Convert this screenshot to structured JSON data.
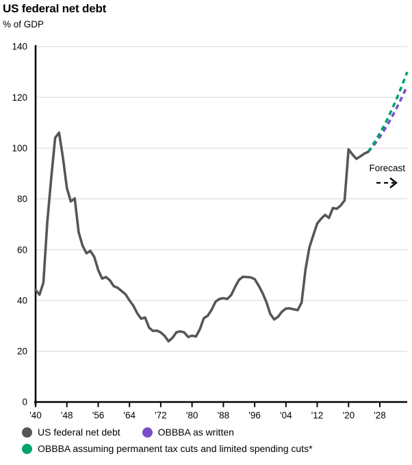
{
  "header": {
    "title": "US federal net debt",
    "subtitle": "% of GDP"
  },
  "chart_data": {
    "type": "line",
    "title": "US federal net debt",
    "ylabel": "% of GDP",
    "xlabel": "",
    "ylim": [
      0,
      140
    ],
    "yticks": [
      0,
      20,
      40,
      60,
      80,
      100,
      120,
      140
    ],
    "xlim": [
      1940,
      2035
    ],
    "xticks": [
      {
        "year": 1940,
        "label": "'40"
      },
      {
        "year": 1948,
        "label": "'48"
      },
      {
        "year": 1956,
        "label": "'56"
      },
      {
        "year": 1964,
        "label": "'64"
      },
      {
        "year": 1972,
        "label": "'72"
      },
      {
        "year": 1980,
        "label": "'80"
      },
      {
        "year": 1988,
        "label": "'88"
      },
      {
        "year": 1996,
        "label": "'96"
      },
      {
        "year": 2004,
        "label": "'04"
      },
      {
        "year": 2012,
        "label": "'12"
      },
      {
        "year": 2020,
        "label": "'20"
      },
      {
        "year": 2028,
        "label": "'28"
      }
    ],
    "grid": "horizontal",
    "legend_position": "bottom",
    "annotation": {
      "label": "Forecast",
      "arrow": "- ->"
    },
    "colors": {
      "actual": "#54565A",
      "obbba_written": "#7B4FC9",
      "obbba_permanent": "#00A36C",
      "gridline": "#DCDCDC",
      "axis": "#000000"
    },
    "series": [
      {
        "name": "US federal net debt",
        "color": "#54565A",
        "style": "solid",
        "points": [
          [
            1940,
            44.2
          ],
          [
            1941,
            42.3
          ],
          [
            1942,
            47.0
          ],
          [
            1943,
            70.9
          ],
          [
            1944,
            88.3
          ],
          [
            1945,
            104.1
          ],
          [
            1946,
            106.1
          ],
          [
            1947,
            96.2
          ],
          [
            1948,
            84.3
          ],
          [
            1949,
            79.0
          ],
          [
            1950,
            80.2
          ],
          [
            1951,
            66.9
          ],
          [
            1952,
            61.6
          ],
          [
            1953,
            58.6
          ],
          [
            1954,
            59.5
          ],
          [
            1955,
            57.2
          ],
          [
            1956,
            52.0
          ],
          [
            1957,
            48.6
          ],
          [
            1958,
            49.2
          ],
          [
            1959,
            47.9
          ],
          [
            1960,
            45.6
          ],
          [
            1961,
            45.0
          ],
          [
            1962,
            43.7
          ],
          [
            1963,
            42.4
          ],
          [
            1964,
            40.0
          ],
          [
            1965,
            37.9
          ],
          [
            1966,
            34.9
          ],
          [
            1967,
            32.8
          ],
          [
            1968,
            33.3
          ],
          [
            1969,
            29.3
          ],
          [
            1970,
            28.0
          ],
          [
            1971,
            28.1
          ],
          [
            1972,
            27.4
          ],
          [
            1973,
            26.0
          ],
          [
            1974,
            23.9
          ],
          [
            1975,
            25.3
          ],
          [
            1976,
            27.5
          ],
          [
            1977,
            27.8
          ],
          [
            1978,
            27.4
          ],
          [
            1979,
            25.6
          ],
          [
            1980,
            26.1
          ],
          [
            1981,
            25.8
          ],
          [
            1982,
            28.7
          ],
          [
            1983,
            33.0
          ],
          [
            1984,
            34.0
          ],
          [
            1985,
            36.3
          ],
          [
            1986,
            39.5
          ],
          [
            1987,
            40.6
          ],
          [
            1988,
            40.9
          ],
          [
            1989,
            40.6
          ],
          [
            1990,
            42.1
          ],
          [
            1991,
            45.3
          ],
          [
            1992,
            48.1
          ],
          [
            1993,
            49.3
          ],
          [
            1994,
            49.2
          ],
          [
            1995,
            49.1
          ],
          [
            1996,
            48.4
          ],
          [
            1997,
            45.9
          ],
          [
            1998,
            43.0
          ],
          [
            1999,
            39.4
          ],
          [
            2000,
            34.7
          ],
          [
            2001,
            32.5
          ],
          [
            2002,
            33.6
          ],
          [
            2003,
            35.6
          ],
          [
            2004,
            36.8
          ],
          [
            2005,
            36.9
          ],
          [
            2006,
            36.5
          ],
          [
            2007,
            36.2
          ],
          [
            2008,
            39.2
          ],
          [
            2009,
            52.2
          ],
          [
            2010,
            60.9
          ],
          [
            2011,
            65.7
          ],
          [
            2012,
            70.3
          ],
          [
            2013,
            72.2
          ],
          [
            2014,
            73.7
          ],
          [
            2015,
            72.5
          ],
          [
            2016,
            76.4
          ],
          [
            2017,
            76.1
          ],
          [
            2018,
            77.4
          ],
          [
            2019,
            79.4
          ],
          [
            2020,
            99.5
          ],
          [
            2021,
            97.5
          ],
          [
            2022,
            95.8
          ],
          [
            2023,
            96.7
          ],
          [
            2024,
            97.8
          ],
          [
            2025,
            98.5
          ]
        ]
      },
      {
        "name": "OBBBA as written",
        "color": "#7B4FC9",
        "style": "dashed",
        "points": [
          [
            2025,
            98.5
          ],
          [
            2026,
            100.3
          ],
          [
            2027,
            102.2
          ],
          [
            2028,
            104.4
          ],
          [
            2029,
            106.8
          ],
          [
            2030,
            109.3
          ],
          [
            2031,
            112.0
          ],
          [
            2032,
            114.9
          ],
          [
            2033,
            118.0
          ],
          [
            2034,
            121.2
          ],
          [
            2035,
            124.5
          ]
        ]
      },
      {
        "name": "OBBBA assuming permanent tax cuts and limited spending cuts*",
        "color": "#00A36C",
        "style": "dashed",
        "points": [
          [
            2025,
            98.5
          ],
          [
            2026,
            100.8
          ],
          [
            2027,
            103.2
          ],
          [
            2028,
            105.8
          ],
          [
            2029,
            108.6
          ],
          [
            2030,
            111.6
          ],
          [
            2031,
            114.9
          ],
          [
            2032,
            118.4
          ],
          [
            2033,
            122.1
          ],
          [
            2034,
            126.0
          ],
          [
            2035,
            130.0
          ]
        ]
      }
    ]
  }
}
